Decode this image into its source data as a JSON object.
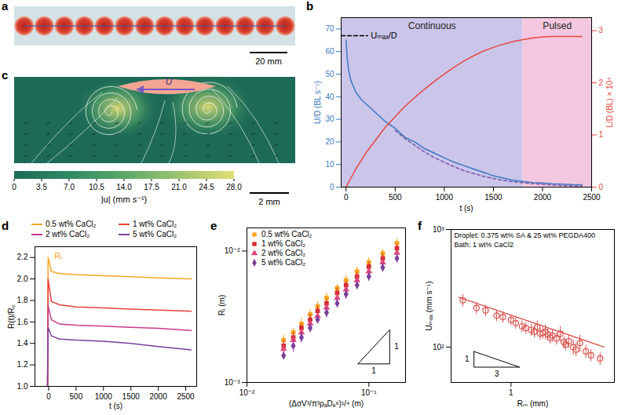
{
  "chart_data": [
    {
      "panel": "a",
      "type": "image",
      "droplets": 14,
      "scale_bar": "20 mm"
    },
    {
      "panel": "b",
      "type": "line",
      "xlabel": "t (s)",
      "ylabel": "U/D (BL s⁻¹)",
      "y2label": "L/D (BL) × 10⁴",
      "xlim": [
        -50,
        2500
      ],
      "xticks": [
        0,
        500,
        1000,
        1500,
        2000,
        2500
      ],
      "ylim": [
        0,
        75
      ],
      "yticks": [
        0,
        10,
        20,
        30,
        40,
        50,
        60,
        70
      ],
      "y2lim": [
        0,
        3.25
      ],
      "y2ticks": [
        0,
        1,
        2,
        3
      ],
      "phases": [
        {
          "label": "Continuous",
          "x1": -50,
          "x2": 1800,
          "color": "#cbc5ea"
        },
        {
          "label": "Pulsed",
          "x1": 1800,
          "x2": 2500,
          "color": "#f3c7df"
        }
      ],
      "annotation": {
        "text": "Uₘₐₓ/D",
        "y": 67,
        "x": [
          -50,
          220
        ]
      },
      "series": [
        {
          "color": "#3a78c2",
          "line_style": "solid",
          "x": [
            0,
            10,
            25,
            50,
            100,
            150,
            200,
            300,
            400,
            500,
            600,
            700,
            800,
            900,
            1000,
            1100,
            1200,
            1300,
            1400,
            1500,
            1600,
            1700,
            1800,
            1900,
            2000,
            2100,
            2200,
            2300,
            2400
          ],
          "values": [
            65,
            58,
            52,
            47,
            42,
            39,
            37,
            33,
            29,
            26,
            22,
            20,
            17,
            15,
            13,
            11,
            9.5,
            8,
            6.5,
            5,
            4,
            3,
            2.5,
            2,
            1.8,
            1.5,
            1.3,
            1.1,
            1.0
          ]
        },
        {
          "color": "#7a5aa8",
          "line_style": "dashed",
          "x": [
            500,
            600,
            700,
            800,
            900,
            1000,
            1100,
            1200,
            1300,
            1400,
            1500,
            1600,
            1700,
            1800,
            1900,
            2000,
            2100,
            2200,
            2300,
            2400
          ],
          "values": [
            25,
            21.5,
            18.5,
            15.5,
            13,
            11,
            9,
            7.3,
            6,
            4.8,
            3.8,
            3,
            2.4,
            1.9,
            1.5,
            1.2,
            0.9,
            0.7,
            0.55,
            0.45
          ]
        },
        {
          "color": "#e8473f",
          "line_style": "solid",
          "axis": "y2",
          "x": [
            0,
            100,
            200,
            300,
            400,
            500,
            600,
            700,
            800,
            900,
            1000,
            1100,
            1200,
            1300,
            1400,
            1500,
            1600,
            1700,
            1800,
            1900,
            2000,
            2100,
            2200,
            2300,
            2400
          ],
          "values": [
            0,
            0.35,
            0.65,
            0.9,
            1.15,
            1.35,
            1.55,
            1.72,
            1.88,
            2.03,
            2.17,
            2.3,
            2.42,
            2.52,
            2.61,
            2.68,
            2.74,
            2.79,
            2.83,
            2.86,
            2.88,
            2.89,
            2.89,
            2.89,
            2.89
          ]
        }
      ]
    },
    {
      "panel": "c",
      "type": "image",
      "arrow_label": "U",
      "scale_bar": "2 mm",
      "colorbar": {
        "label": "|u| (mm s⁻¹)",
        "range": [
          0,
          28
        ],
        "colors": [
          "#1d6a57",
          "#2e8a63",
          "#5aa86a",
          "#9cc46e",
          "#e2dc74"
        ],
        "ticks": [
          0,
          3.5,
          {
            "value": 7,
            "label": "7.0"
          },
          10.5,
          {
            "value": 14,
            "label": "14.0"
          },
          17.5,
          {
            "value": 21,
            "label": "21.0"
          },
          24.5,
          {
            "value": 28,
            "label": "28.0"
          }
        ]
      }
    },
    {
      "panel": "d",
      "type": "line",
      "xlabel": "t (s)",
      "ylabel": "R(t)/R₀",
      "xlim": [
        -250,
        2700
      ],
      "xticks": [
        0,
        500,
        1000,
        1500,
        2000,
        2500
      ],
      "ylim": [
        1.0,
        2.3
      ],
      "yticks": [
        {
          "value": 1,
          "label": "1.0"
        },
        1.2,
        1.4,
        1.6,
        1.8,
        {
          "value": 2,
          "label": "2.0"
        },
        2.2
      ],
      "legend": "top",
      "annotation": {
        "text": "Rᵢ",
        "x": -10,
        "y": 2.2,
        "color": "#f5a623"
      },
      "x": [
        -20,
        -10,
        50,
        200,
        500,
        1000,
        1500,
        2000,
        2600
      ],
      "series": [
        {
          "name": "0.5 wt% CaCl₂",
          "color": "#f5a623",
          "values": [
            1.0,
            2.2,
            2.07,
            2.05,
            2.04,
            2.03,
            2.02,
            2.01,
            2.0
          ]
        },
        {
          "name": "1 wt% CaCl₂",
          "color": "#e8403a",
          "values": [
            1.0,
            2.0,
            1.79,
            1.76,
            1.74,
            1.73,
            1.72,
            1.71,
            1.7
          ]
        },
        {
          "name": "2 wt% CaCl₂",
          "color": "#c93b8a",
          "values": [
            1.0,
            1.75,
            1.62,
            1.58,
            1.57,
            1.56,
            1.55,
            1.54,
            1.52
          ]
        },
        {
          "name": "5 wt% CaCl₂",
          "color": "#7b3fa0",
          "values": [
            1.0,
            1.55,
            1.47,
            1.44,
            1.43,
            1.42,
            1.4,
            1.37,
            1.34
          ]
        }
      ]
    },
    {
      "panel": "e",
      "type": "scatter",
      "log": true,
      "xlabel": "(ΔσV³/π³ρₐDₑ⁶)¹/⁴ (m)",
      "ylabel": "Rᵢ (m)",
      "xlim": [
        0.01,
        0.2
      ],
      "xticks": [
        {
          "value": 0.01,
          "label": "10⁻²"
        },
        {
          "value": 0.1,
          "label": "10⁻¹"
        }
      ],
      "ylim": [
        0.001,
        0.015
      ],
      "yticks": [
        {
          "value": 0.001,
          "label": "10⁻³"
        },
        {
          "value": 0.01,
          "label": "10⁻²"
        }
      ],
      "legend": "top-left",
      "slope": {
        "run": 1,
        "rise": 1
      },
      "x": [
        0.02,
        0.024,
        0.028,
        0.033,
        0.038,
        0.045,
        0.055,
        0.065,
        0.08,
        0.1,
        0.13,
        0.17
      ],
      "series": [
        {
          "name": "0.5 wt% CaCl₂",
          "color": "#f5a623",
          "marker": "circle",
          "values": [
            0.0021,
            0.0024,
            0.0028,
            0.0033,
            0.0038,
            0.0044,
            0.0052,
            0.006,
            0.007,
            0.0082,
            0.0096,
            0.0115
          ],
          "errors": [
            0.0002,
            0.0002,
            0.0003,
            0.0003,
            0.0003,
            0.0004,
            0.0004,
            0.0005,
            0.0006,
            0.0007,
            0.0008,
            0.0009
          ]
        },
        {
          "name": "1 wt% CaCl₂",
          "color": "#d62728",
          "marker": "square",
          "values": [
            0.0019,
            0.0022,
            0.0026,
            0.003,
            0.0035,
            0.004,
            0.0048,
            0.0055,
            0.0064,
            0.0076,
            0.0088,
            0.0105
          ],
          "errors": [
            0.0002,
            0.0002,
            0.0002,
            0.0003,
            0.0003,
            0.0003,
            0.0004,
            0.0004,
            0.0005,
            0.0006,
            0.0007,
            0.0008
          ]
        },
        {
          "name": "2 wt% CaCl₂",
          "color": "#e0457b",
          "marker": "triangle",
          "values": [
            0.0018,
            0.0021,
            0.0024,
            0.0028,
            0.0032,
            0.0037,
            0.0044,
            0.0051,
            0.006,
            0.007,
            0.0082,
            0.0097
          ],
          "errors": [
            0.0002,
            0.0002,
            0.0002,
            0.0002,
            0.0003,
            0.0003,
            0.0004,
            0.0004,
            0.0005,
            0.0006,
            0.0007,
            0.0008
          ]
        },
        {
          "name": "5 wt% CaCl₂",
          "color": "#7b3f99",
          "marker": "diamond",
          "values": [
            0.0016,
            0.0019,
            0.0022,
            0.0026,
            0.003,
            0.0034,
            0.004,
            0.0047,
            0.0055,
            0.0064,
            0.0075,
            0.0088
          ],
          "errors": [
            0.0001,
            0.0002,
            0.0002,
            0.0002,
            0.0002,
            0.0003,
            0.0003,
            0.0004,
            0.0004,
            0.0005,
            0.0006,
            0.0007
          ]
        }
      ]
    },
    {
      "panel": "f",
      "type": "scatter",
      "log": true,
      "xlabel": "Rₘ (mm)",
      "ylabel": "Uₘₐₓ (mm s⁻¹)",
      "notes": [
        "Droplet: 0.375 wt% SA & 25 wt% PEGDA400",
        "Bath: 1 wt% CaCl2"
      ],
      "xlim": [
        0.3,
        8
      ],
      "xticks": [
        1
      ],
      "ylim": [
        50,
        1000
      ],
      "yticks": [
        {
          "value": 100,
          "label": "10²"
        },
        {
          "value": 1000,
          "label": "10³"
        }
      ],
      "slope": {
        "run": 3,
        "rise": 1
      },
      "fit": {
        "x": [
          0.35,
          6.5
        ],
        "y": [
          265,
          100
        ],
        "color": "#d9534f"
      },
      "series": [
        {
          "color": "#d9534f",
          "marker": "circle-open",
          "x": [
            0.38,
            0.5,
            0.6,
            0.75,
            0.85,
            1.0,
            1.1,
            1.25,
            1.35,
            1.5,
            1.6,
            1.7,
            1.8,
            1.9,
            2.0,
            2.1,
            2.2,
            2.3,
            2.5,
            2.7,
            2.9,
            3.0,
            3.2,
            3.5,
            3.7,
            4.0,
            4.5,
            5.0,
            6.0
          ],
          "values": [
            250,
            215,
            205,
            185,
            180,
            170,
            160,
            150,
            145,
            140,
            135,
            148,
            130,
            132,
            135,
            128,
            120,
            125,
            118,
            130,
            110,
            105,
            112,
            100,
            95,
            108,
            92,
            85,
            80
          ],
          "errors": [
            30,
            25,
            22,
            20,
            20,
            18,
            18,
            17,
            16,
            16,
            15,
            18,
            15,
            15,
            20,
            15,
            14,
            15,
            14,
            20,
            13,
            12,
            14,
            15,
            12,
            18,
            12,
            10,
            10
          ]
        }
      ]
    }
  ]
}
